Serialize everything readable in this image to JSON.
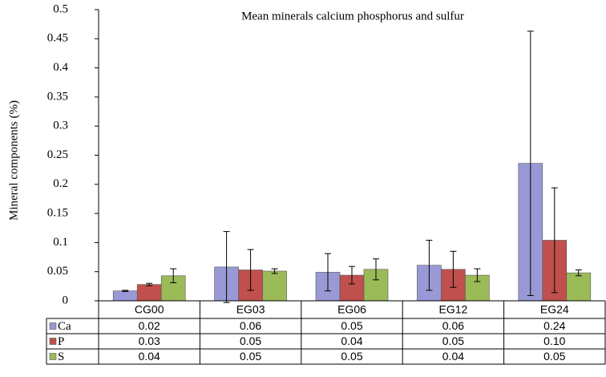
{
  "chart_data": {
    "type": "bar",
    "title": "Mean minerals calcium phosphorus and sulfur",
    "y_label": "Mineral components (%)",
    "categories": [
      "CG00",
      "EG03",
      "EG06",
      "EG12",
      "EG24"
    ],
    "series": [
      {
        "name": "Ca",
        "color": "#9999d6",
        "values": [
          0.017,
          0.058,
          0.049,
          0.061,
          0.236
        ],
        "errors": [
          0.001,
          0.061,
          0.032,
          0.043,
          0.227
        ],
        "value_labels": [
          "0.02",
          "0.06",
          "0.05",
          "0.06",
          "0.24"
        ]
      },
      {
        "name": "P",
        "color": "#c0504d",
        "values": [
          0.028,
          0.053,
          0.044,
          0.054,
          0.104
        ],
        "errors": [
          0.002,
          0.035,
          0.015,
          0.031,
          0.09
        ],
        "value_labels": [
          "0.03",
          "0.05",
          "0.04",
          "0.05",
          "0.10"
        ]
      },
      {
        "name": "S",
        "color": "#9bbb59",
        "values": [
          0.043,
          0.051,
          0.054,
          0.044,
          0.048
        ],
        "errors": [
          0.012,
          0.004,
          0.018,
          0.011,
          0.005
        ],
        "value_labels": [
          "0.04",
          "0.05",
          "0.05",
          "0.04",
          "0.05"
        ]
      }
    ],
    "ylim": [
      0,
      0.5
    ],
    "yticks": [
      0,
      0.05,
      0.1,
      0.15,
      0.2,
      0.25,
      0.3,
      0.35,
      0.4,
      0.45,
      0.5
    ],
    "grid": false
  }
}
